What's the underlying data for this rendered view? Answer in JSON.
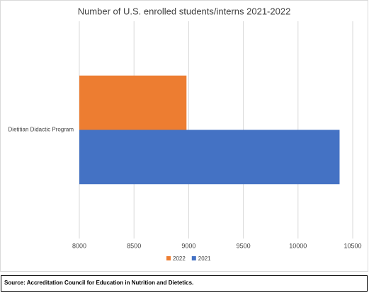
{
  "chart_data": {
    "type": "bar",
    "orientation": "horizontal",
    "title": "Number of U.S. enrolled students/interns 2021-2022",
    "categories": [
      "Dietitian Didactic Program"
    ],
    "series": [
      {
        "name": "2022",
        "color": "#ed7d31",
        "values": [
          8980
        ]
      },
      {
        "name": "2021",
        "color": "#4472c4",
        "values": [
          10380
        ]
      }
    ],
    "xlim": [
      8000,
      10500
    ],
    "xticks": [
      8000,
      8500,
      9000,
      9500,
      10000,
      10500
    ],
    "grid": true,
    "legend": "bottom"
  },
  "source": "Source: Accreditation Council for Education in Nutrition and Dietetics."
}
